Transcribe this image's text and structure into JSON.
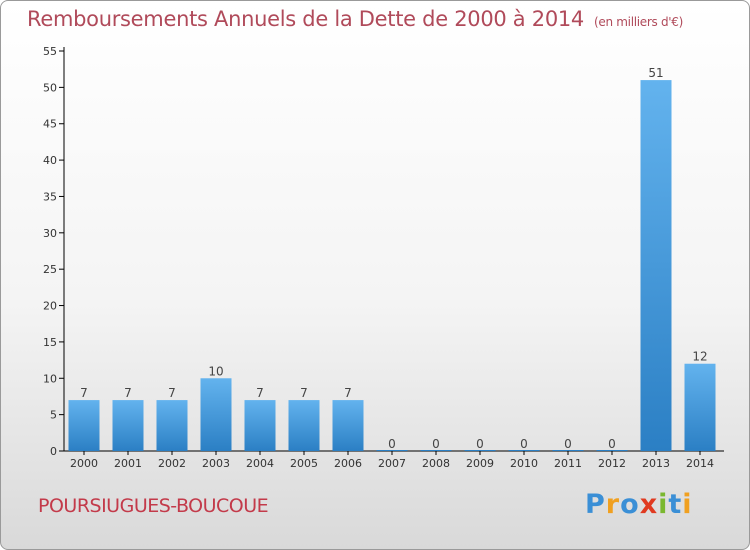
{
  "title": "Remboursements Annuels de la Dette de 2000 à 2014",
  "unit_note": "(en milliers d'€)",
  "commune": "POURSIUGUES-BOUCOUE",
  "logo": {
    "letters": [
      "P",
      "r",
      "o",
      "x",
      "i",
      "t",
      "i"
    ],
    "colors": [
      "#3a8fd6",
      "#f0a020",
      "#3a8fd6",
      "#e03a20",
      "#7ab830",
      "#3a8fd6",
      "#f0a020"
    ]
  },
  "colors": {
    "bar_light": "#63b3ee",
    "bar_dark": "#2b7fc4",
    "title": "#b04a5a",
    "axis": "#000000"
  },
  "chart_data": {
    "type": "bar",
    "title": "Remboursements Annuels de la Dette de 2000 à 2014",
    "categories": [
      "2000",
      "2001",
      "2002",
      "2003",
      "2004",
      "2005",
      "2006",
      "2007",
      "2008",
      "2009",
      "2010",
      "2011",
      "2012",
      "2013",
      "2014"
    ],
    "values": [
      7,
      7,
      7,
      10,
      7,
      7,
      7,
      0,
      0,
      0,
      0,
      0,
      0,
      51,
      12
    ],
    "ylim": [
      0,
      55
    ],
    "yticks": [
      0,
      5,
      10,
      15,
      20,
      25,
      30,
      35,
      40,
      45,
      50,
      55
    ],
    "grid": false,
    "data_labels": true
  }
}
